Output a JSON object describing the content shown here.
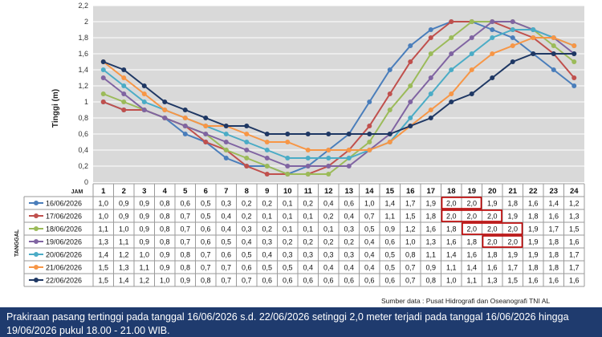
{
  "chart_data": {
    "type": "line",
    "ylabel": "Tinggi (m)",
    "ylim": [
      0,
      2.2
    ],
    "yticks": [
      "0",
      "0,2",
      "0,4",
      "0,6",
      "0,8",
      "1",
      "1,2",
      "1,4",
      "1,6",
      "1,8",
      "2",
      "2,2"
    ],
    "x_label": "JAM",
    "x": [
      "1",
      "2",
      "3",
      "4",
      "5",
      "6",
      "7",
      "8",
      "9",
      "10",
      "11",
      "12",
      "13",
      "14",
      "15",
      "16",
      "17",
      "18",
      "19",
      "20",
      "21",
      "22",
      "23",
      "24"
    ],
    "grid": true,
    "legend": "table-below",
    "table_axis_label": "TANGGAL",
    "series": [
      {
        "name": "16/06/2026",
        "color": "#4a7ebb",
        "values": [
          1.0,
          0.9,
          0.9,
          0.8,
          0.6,
          0.5,
          0.3,
          0.2,
          0.2,
          0.1,
          0.2,
          0.4,
          0.6,
          1.0,
          1.4,
          1.7,
          1.9,
          2.0,
          2.0,
          1.9,
          1.8,
          1.6,
          1.4,
          1.2
        ],
        "labels": [
          "1,0",
          "0,9",
          "0,9",
          "0,8",
          "0,6",
          "0,5",
          "0,3",
          "0,2",
          "0,2",
          "0,1",
          "0,2",
          "0,4",
          "0,6",
          "1,0",
          "1,4",
          "1,7",
          "1,9",
          "2,0",
          "2,0",
          "1,9",
          "1,8",
          "1,6",
          "1,4",
          "1,2"
        ]
      },
      {
        "name": "17/06/2026",
        "color": "#c0504d",
        "values": [
          1.0,
          0.9,
          0.9,
          0.8,
          0.7,
          0.5,
          0.4,
          0.2,
          0.1,
          0.1,
          0.1,
          0.2,
          0.4,
          0.7,
          1.1,
          1.5,
          1.8,
          2.0,
          2.0,
          2.0,
          1.9,
          1.8,
          1.6,
          1.3
        ],
        "labels": [
          "1,0",
          "0,9",
          "0,9",
          "0,8",
          "0,7",
          "0,5",
          "0,4",
          "0,2",
          "0,1",
          "0,1",
          "0,1",
          "0,2",
          "0,4",
          "0,7",
          "1,1",
          "1,5",
          "1,8",
          "2,0",
          "2,0",
          "2,0",
          "1,9",
          "1,8",
          "1,6",
          "1,3"
        ]
      },
      {
        "name": "18/06/2026",
        "color": "#9bbb59",
        "values": [
          1.1,
          1.0,
          0.9,
          0.8,
          0.7,
          0.6,
          0.4,
          0.3,
          0.2,
          0.1,
          0.1,
          0.1,
          0.3,
          0.5,
          0.9,
          1.2,
          1.6,
          1.8,
          2.0,
          2.0,
          2.0,
          1.9,
          1.7,
          1.5
        ],
        "labels": [
          "1,1",
          "1,0",
          "0,9",
          "0,8",
          "0,7",
          "0,6",
          "0,4",
          "0,3",
          "0,2",
          "0,1",
          "0,1",
          "0,1",
          "0,3",
          "0,5",
          "0,9",
          "1,2",
          "1,6",
          "1,8",
          "2,0",
          "2,0",
          "2,0",
          "1,9",
          "1,7",
          "1,5"
        ]
      },
      {
        "name": "19/06/2026",
        "color": "#8064a2",
        "values": [
          1.3,
          1.1,
          0.9,
          0.8,
          0.7,
          0.6,
          0.5,
          0.4,
          0.3,
          0.2,
          0.2,
          0.2,
          0.2,
          0.4,
          0.6,
          1.0,
          1.3,
          1.6,
          1.8,
          2.0,
          2.0,
          1.9,
          1.8,
          1.6
        ],
        "labels": [
          "1,3",
          "1,1",
          "0,9",
          "0,8",
          "0,7",
          "0,6",
          "0,5",
          "0,4",
          "0,3",
          "0,2",
          "0,2",
          "0,2",
          "0,2",
          "0,4",
          "0,6",
          "1,0",
          "1,3",
          "1,6",
          "1,8",
          "2,0",
          "2,0",
          "1,9",
          "1,8",
          "1,6"
        ]
      },
      {
        "name": "20/06/2026",
        "color": "#4bacc6",
        "values": [
          1.4,
          1.2,
          1.0,
          0.9,
          0.8,
          0.7,
          0.6,
          0.5,
          0.4,
          0.3,
          0.3,
          0.3,
          0.3,
          0.4,
          0.5,
          0.8,
          1.1,
          1.4,
          1.6,
          1.8,
          1.9,
          1.9,
          1.8,
          1.7
        ],
        "labels": [
          "1,4",
          "1,2",
          "1,0",
          "0,9",
          "0,8",
          "0,7",
          "0,6",
          "0,5",
          "0,4",
          "0,3",
          "0,3",
          "0,3",
          "0,3",
          "0,4",
          "0,5",
          "0,8",
          "1,1",
          "1,4",
          "1,6",
          "1,8",
          "1,9",
          "1,9",
          "1,8",
          "1,7"
        ]
      },
      {
        "name": "21/06/2026",
        "color": "#f79646",
        "values": [
          1.5,
          1.3,
          1.1,
          0.9,
          0.8,
          0.7,
          0.7,
          0.6,
          0.5,
          0.5,
          0.4,
          0.4,
          0.4,
          0.4,
          0.5,
          0.7,
          0.9,
          1.1,
          1.4,
          1.6,
          1.7,
          1.8,
          1.8,
          1.7
        ],
        "labels": [
          "1,5",
          "1,3",
          "1,1",
          "0,9",
          "0,8",
          "0,7",
          "0,7",
          "0,6",
          "0,5",
          "0,5",
          "0,4",
          "0,4",
          "0,4",
          "0,4",
          "0,5",
          "0,7",
          "0,9",
          "1,1",
          "1,4",
          "1,6",
          "1,7",
          "1,8",
          "1,8",
          "1,7"
        ]
      },
      {
        "name": "22/06/2026",
        "color": "#1f3864",
        "values": [
          1.5,
          1.4,
          1.2,
          1.0,
          0.9,
          0.8,
          0.7,
          0.7,
          0.6,
          0.6,
          0.6,
          0.6,
          0.6,
          0.6,
          0.6,
          0.7,
          0.8,
          1.0,
          1.1,
          1.3,
          1.5,
          1.6,
          1.6,
          1.6
        ],
        "labels": [
          "1,5",
          "1,4",
          "1,2",
          "1,0",
          "0,9",
          "0,8",
          "0,7",
          "0,7",
          "0,6",
          "0,6",
          "0,6",
          "0,6",
          "0,6",
          "0,6",
          "0,6",
          "0,7",
          "0,8",
          "1,0",
          "1,1",
          "1,3",
          "1,5",
          "1,6",
          "1,6",
          "1,6"
        ]
      }
    ],
    "highlights": [
      {
        "series": 0,
        "from": 18,
        "to": 19
      },
      {
        "series": 1,
        "from": 18,
        "to": 20
      },
      {
        "series": 2,
        "from": 19,
        "to": 21
      },
      {
        "series": 3,
        "from": 20,
        "to": 21
      }
    ],
    "highlight_color": "#c00000"
  },
  "source": "Sumber data : Pusat Hidrografi dan Oseanografi TNI AL",
  "banner": {
    "text": "Prakiraan pasang tertinggi pada tanggal 16/06/2026 s.d. 22/06/2026 setinggi 2,0 meter terjadi pada tanggal 16/06/2026 hingga 19/06/2026 pukul 18.00 - 21.00 WIB."
  },
  "colors": {
    "plot_bg": "#d9d9d9",
    "grid": "#ffffff",
    "banner_bg": "#1f3b6e"
  }
}
